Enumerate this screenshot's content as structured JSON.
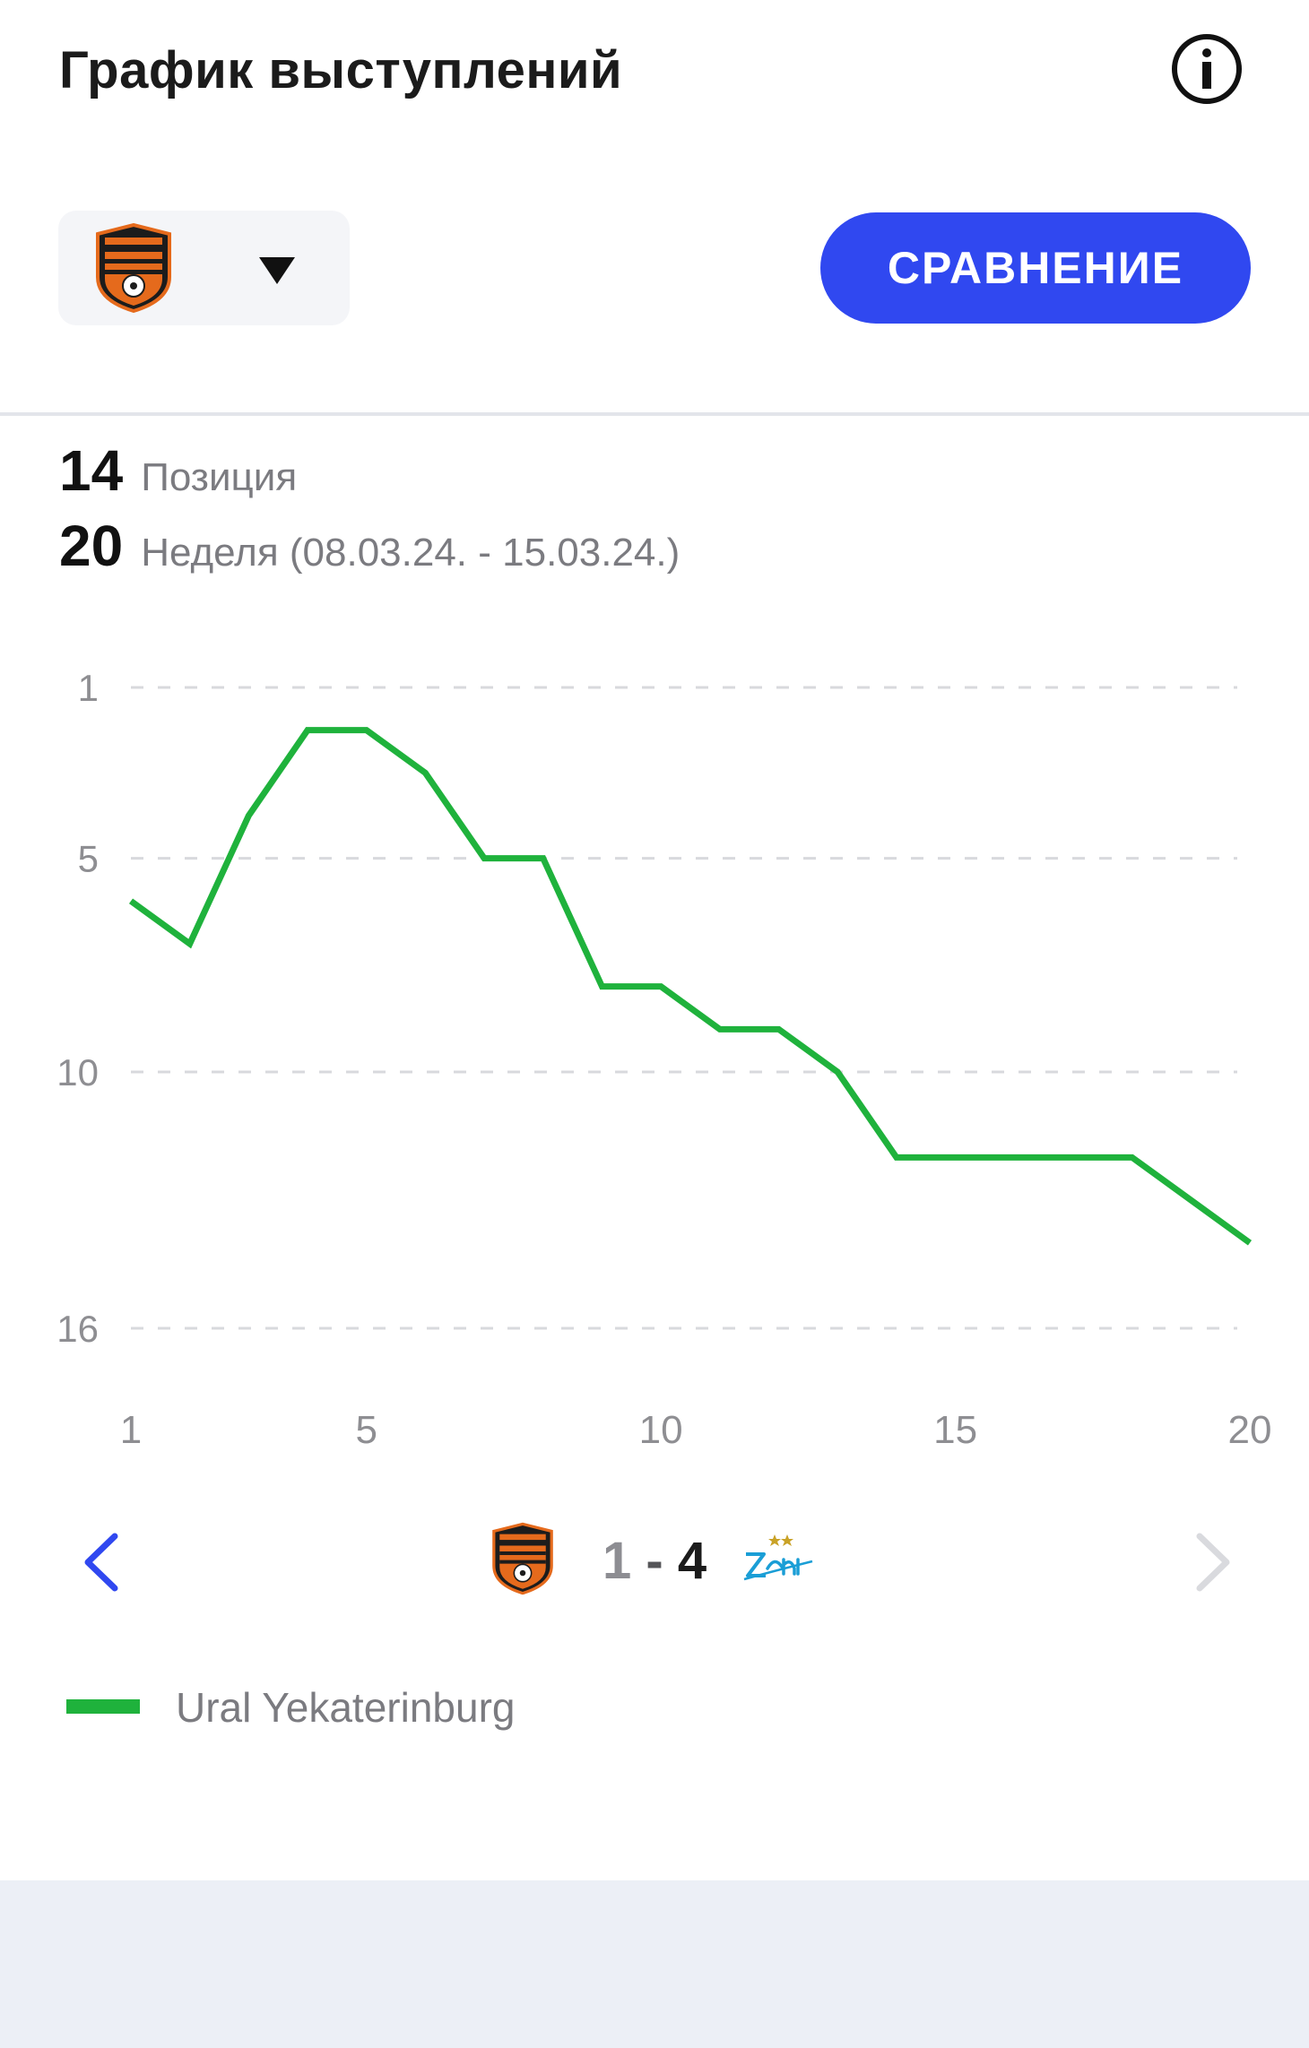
{
  "header": {
    "title": "График выступлений",
    "info_icon": "info-icon"
  },
  "controls": {
    "team_selector": {
      "crest_icon": "ural-crest-icon",
      "dropdown_icon": "caret-down-icon"
    },
    "compare_label": "СРАВНЕНИЕ"
  },
  "stats": {
    "position_value": "14",
    "position_label": "Позиция",
    "week_value": "20",
    "week_label": "Неделя (08.03.24. - 15.03.24.)"
  },
  "chart_data": {
    "type": "line",
    "x": [
      1,
      2,
      3,
      4,
      5,
      6,
      7,
      8,
      9,
      10,
      11,
      12,
      13,
      14,
      15,
      16,
      17,
      18,
      19,
      20
    ],
    "series": [
      {
        "name": "Ural Yekaterinburg",
        "color": "#1fb23c",
        "values": [
          6,
          7,
          4,
          2,
          2,
          3,
          5,
          5,
          8,
          8,
          9,
          9,
          10,
          12,
          12,
          12,
          12,
          12,
          13,
          14
        ]
      }
    ],
    "y_ticks": [
      1,
      5,
      10,
      16
    ],
    "x_ticks": [
      1,
      5,
      10,
      15,
      20
    ],
    "ylim": [
      1,
      16
    ],
    "y_inverted": true,
    "xlim": [
      1,
      20
    ],
    "grid": "horizontal-dashed"
  },
  "match": {
    "home_crest": "ural-crest-icon",
    "home_score": "1",
    "separator": " - ",
    "away_score": "4",
    "away_crest": "zenit-logo-icon",
    "prev_icon": "chevron-left-icon",
    "next_icon": "chevron-right-icon"
  },
  "legend": {
    "label": "Ural Yekaterinburg",
    "color": "#1fb23c"
  },
  "colors": {
    "accent": "#3048f0",
    "line": "#1fb23c",
    "footer": "#eceff6"
  }
}
